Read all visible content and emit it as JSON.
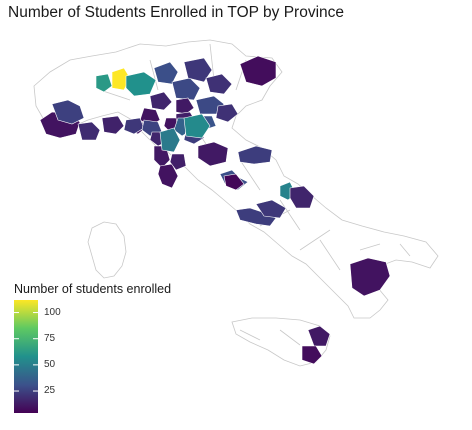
{
  "title": "Number of Students Enrolled in TOP by Province",
  "legend": {
    "title": "Number of students enrolled",
    "ticks": [
      "100",
      "75",
      "50",
      "25"
    ],
    "tick_values": [
      100,
      75,
      50,
      25
    ],
    "min": 4,
    "max": 112
  },
  "colors": {
    "scale": [
      "#440154",
      "#3b528b",
      "#21918c",
      "#5ec962",
      "#fde725"
    ],
    "outline": "#c8c8c8",
    "unselected_fill": "#ffffff"
  },
  "provinces": [
    {
      "id": "p-aosta",
      "value": 10
    },
    {
      "id": "p-torino",
      "value": 25
    },
    {
      "id": "p-cuneo",
      "value": 18
    },
    {
      "id": "p-alessandria",
      "value": 15
    },
    {
      "id": "p-genova",
      "value": 12
    },
    {
      "id": "p-varese",
      "value": 62
    },
    {
      "id": "p-milano",
      "value": 112
    },
    {
      "id": "p-bergamo",
      "value": 58
    },
    {
      "id": "p-brescia",
      "value": 30
    },
    {
      "id": "p-trento",
      "value": 28
    },
    {
      "id": "p-bolzano",
      "value": 22
    },
    {
      "id": "p-belluno",
      "value": 20
    },
    {
      "id": "p-udine",
      "value": 8
    },
    {
      "id": "p-verona",
      "value": 16
    },
    {
      "id": "p-vicenza",
      "value": 12
    },
    {
      "id": "p-padova",
      "value": 28
    },
    {
      "id": "p-venezia",
      "value": 20
    },
    {
      "id": "p-mantova",
      "value": 10
    },
    {
      "id": "p-ferrara",
      "value": 14
    },
    {
      "id": "p-rovigo",
      "value": 32
    },
    {
      "id": "p-piacenza",
      "value": 22
    },
    {
      "id": "p-parma",
      "value": 26
    },
    {
      "id": "p-reggio",
      "value": 18
    },
    {
      "id": "p-modena",
      "value": 10
    },
    {
      "id": "p-bologna",
      "value": 38
    },
    {
      "id": "p-ravenna",
      "value": 24
    },
    {
      "id": "p-forli",
      "value": 55
    },
    {
      "id": "p-la-spezia",
      "value": 16
    },
    {
      "id": "p-lucca",
      "value": 12
    },
    {
      "id": "p-firenze",
      "value": 48
    },
    {
      "id": "p-livorno",
      "value": 10
    },
    {
      "id": "p-pisa",
      "value": 14
    },
    {
      "id": "p-siena",
      "value": 12
    },
    {
      "id": "p-perugia",
      "value": 24
    },
    {
      "id": "p-ancona",
      "value": 30
    },
    {
      "id": "p-terni",
      "value": 6
    },
    {
      "id": "p-pescara",
      "value": 52
    },
    {
      "id": "p-chieti",
      "value": 16
    },
    {
      "id": "p-roma",
      "value": 24
    },
    {
      "id": "p-latina",
      "value": 22
    },
    {
      "id": "p-cosenza",
      "value": 10
    },
    {
      "id": "p-catania",
      "value": 12
    },
    {
      "id": "p-siracusa",
      "value": 8
    }
  ]
}
